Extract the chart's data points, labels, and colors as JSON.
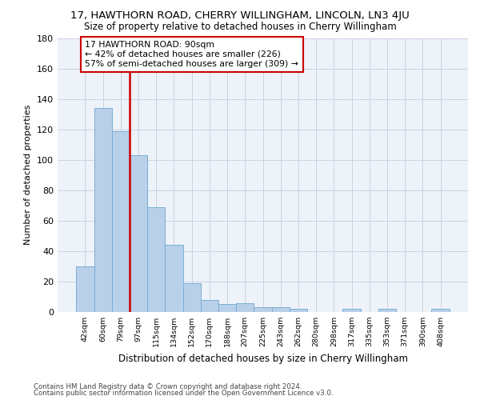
{
  "title1": "17, HAWTHORN ROAD, CHERRY WILLINGHAM, LINCOLN, LN3 4JU",
  "title2": "Size of property relative to detached houses in Cherry Willingham",
  "xlabel": "Distribution of detached houses by size in Cherry Willingham",
  "ylabel": "Number of detached properties",
  "categories": [
    "42sqm",
    "60sqm",
    "79sqm",
    "97sqm",
    "115sqm",
    "134sqm",
    "152sqm",
    "170sqm",
    "188sqm",
    "207sqm",
    "225sqm",
    "243sqm",
    "262sqm",
    "280sqm",
    "298sqm",
    "317sqm",
    "335sqm",
    "353sqm",
    "371sqm",
    "390sqm",
    "408sqm"
  ],
  "values": [
    30,
    134,
    119,
    103,
    69,
    44,
    19,
    8,
    5,
    6,
    3,
    3,
    2,
    0,
    0,
    2,
    0,
    2,
    0,
    0,
    2
  ],
  "bar_color": "#b8d0e8",
  "bar_edge_color": "#7bafd4",
  "vline_color": "#cc0000",
  "annotation_line1": "17 HAWTHORN ROAD: 90sqm",
  "annotation_line2": "← 42% of detached houses are smaller (226)",
  "annotation_line3": "57% of semi-detached houses are larger (309) →",
  "annotation_box_color": "#cc0000",
  "ylim": [
    0,
    180
  ],
  "yticks": [
    0,
    20,
    40,
    60,
    80,
    100,
    120,
    140,
    160,
    180
  ],
  "background_color": "#eef2f9",
  "footer1": "Contains HM Land Registry data © Crown copyright and database right 2024.",
  "footer2": "Contains public sector information licensed under the Open Government Licence v3.0.",
  "title1_fontsize": 9.5,
  "title2_fontsize": 8.5,
  "grid_color": "#c5cde0"
}
